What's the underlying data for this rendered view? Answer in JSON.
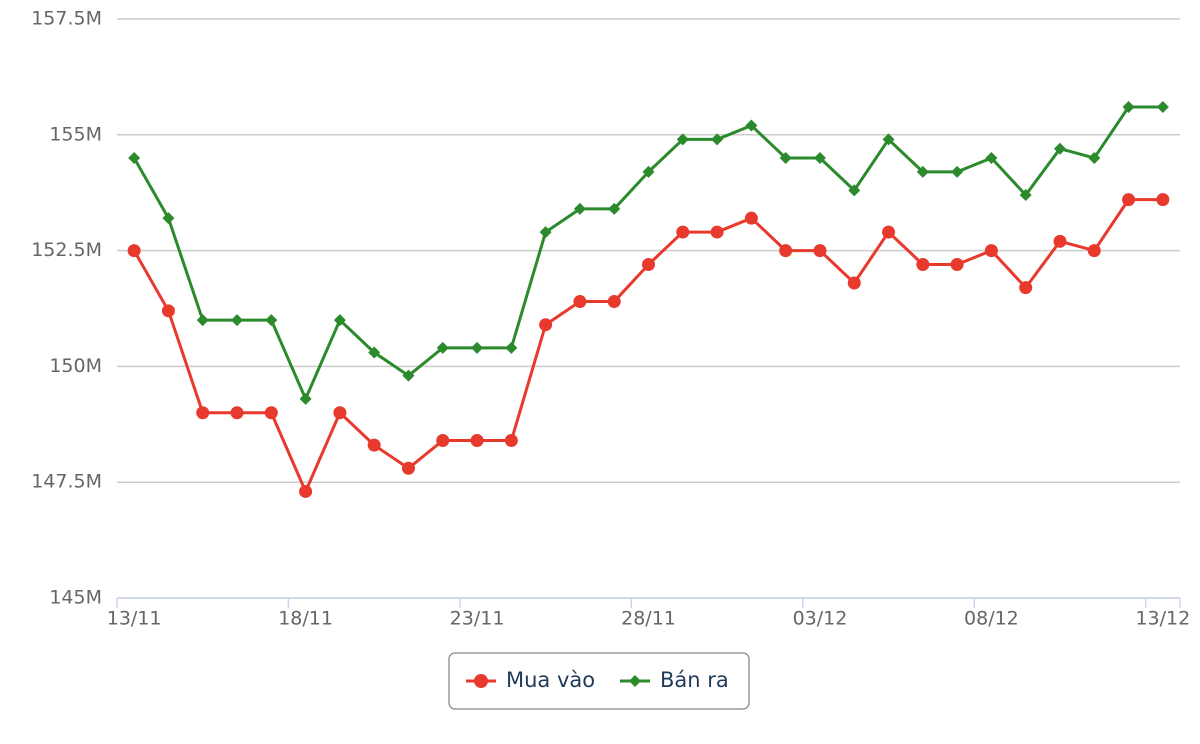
{
  "chart_data": {
    "type": "line",
    "categories": [
      "13/11",
      null,
      null,
      null,
      null,
      "18/11",
      null,
      null,
      null,
      null,
      "23/11",
      null,
      null,
      null,
      null,
      "28/11",
      null,
      null,
      null,
      null,
      "03/12",
      null,
      null,
      null,
      null,
      "08/12",
      null,
      null,
      null,
      null,
      "13/12"
    ],
    "series": [
      {
        "name": "Mua vào",
        "color": "#e8392d",
        "marker": "circle",
        "values": [
          152500000,
          151200000,
          149000000,
          149000000,
          149000000,
          147300000,
          149000000,
          148300000,
          147800000,
          148400000,
          148400000,
          148400000,
          150900000,
          151400000,
          151400000,
          152200000,
          152900000,
          152900000,
          153200000,
          152500000,
          152500000,
          151800000,
          152900000,
          152200000,
          152200000,
          152500000,
          151700000,
          152700000,
          152500000,
          153600000,
          153600000
        ]
      },
      {
        "name": "Bán ra",
        "color": "#2b8a2b",
        "marker": "diamond",
        "values": [
          154500000,
          153200000,
          151000000,
          151000000,
          151000000,
          149300000,
          151000000,
          150300000,
          149800000,
          150400000,
          150400000,
          150400000,
          152900000,
          153400000,
          153400000,
          154200000,
          154900000,
          154900000,
          155200000,
          154500000,
          154500000,
          153800000,
          154900000,
          154200000,
          154200000,
          154500000,
          153700000,
          154700000,
          154500000,
          155600000,
          155600000
        ]
      }
    ],
    "ylim": [
      145000000,
      157500000
    ],
    "yticks": [
      {
        "value": 145000000,
        "label": "145M"
      },
      {
        "value": 147500000,
        "label": "147.5M"
      },
      {
        "value": 150000000,
        "label": "150M"
      },
      {
        "value": 152500000,
        "label": "152.5M"
      },
      {
        "value": 155000000,
        "label": "155M"
      },
      {
        "value": 157500000,
        "label": "157.5M"
      }
    ],
    "grid": true
  }
}
